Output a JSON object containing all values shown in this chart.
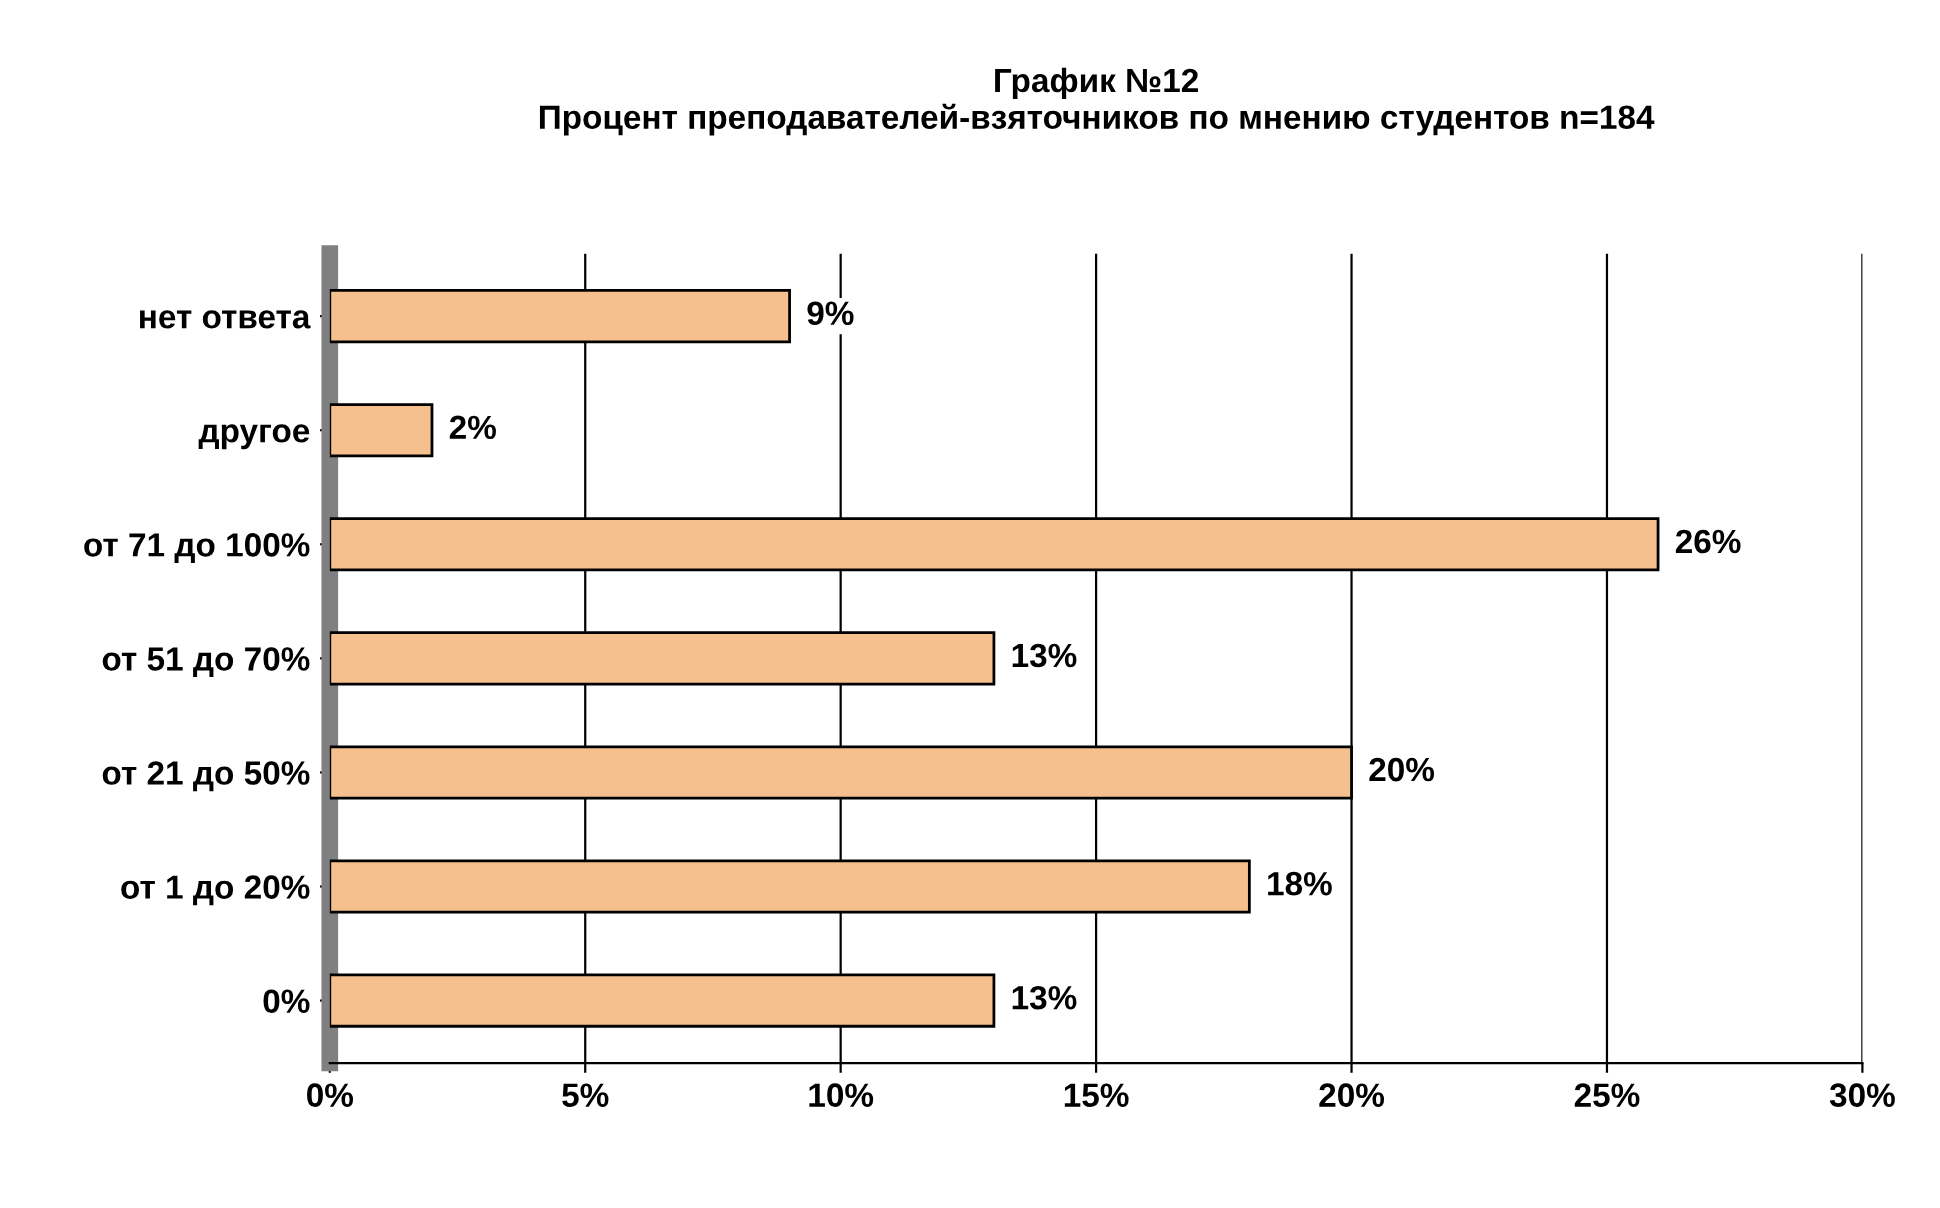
{
  "chart_data": {
    "type": "bar",
    "orientation": "horizontal",
    "title": "График №12\nПроцент преподавателей-взяточников по мнению студентов n=184",
    "categories": [
      "нет ответа",
      "другое",
      "от 71 до 100%",
      "от 51 до 70%",
      "от 21 до 50%",
      "от 1 до 20%",
      "0%"
    ],
    "values": [
      9,
      2,
      26,
      13,
      20,
      18,
      13
    ],
    "value_labels": [
      "9%",
      "2%",
      "26%",
      "13%",
      "20%",
      "18%",
      "13%"
    ],
    "color": "#f6c08e",
    "xlim": [
      0,
      30
    ],
    "xticks": [
      {
        "value": 0,
        "label": "0%"
      },
      {
        "value": 5,
        "label": "5%"
      },
      {
        "value": 10,
        "label": "10%"
      },
      {
        "value": 15,
        "label": "15%"
      },
      {
        "value": 20,
        "label": "20%"
      },
      {
        "value": 25,
        "label": "25%"
      },
      {
        "value": 30,
        "label": "30%"
      }
    ],
    "grid": "x"
  }
}
